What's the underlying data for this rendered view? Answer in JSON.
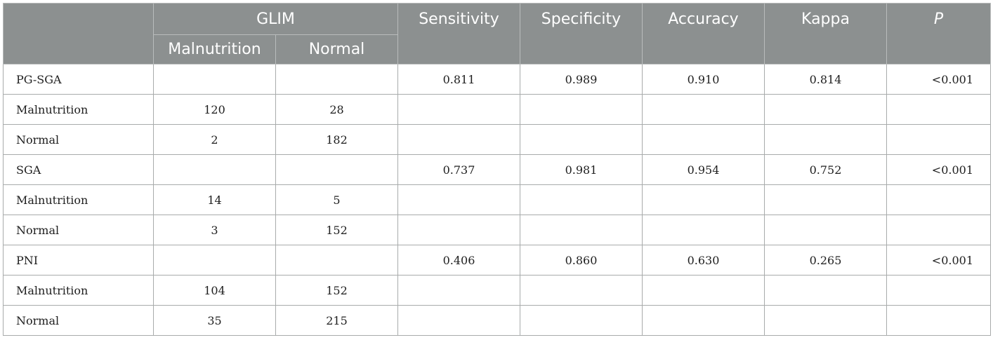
{
  "header": {
    "glim": "GLIM",
    "malnutrition": "Malnutrition",
    "normal": "Normal",
    "sensitivity": "Sensitivity",
    "specificity": "Specificity",
    "accuracy": "Accuracy",
    "kappa": "Kappa",
    "p": "P"
  },
  "rows": [
    {
      "label": "PG-SGA",
      "malnutrition": "",
      "normal": "",
      "sensitivity": "0.811",
      "specificity": "0.989",
      "accuracy": "0.910",
      "kappa": "0.814",
      "p": "<0.001"
    },
    {
      "label": "Malnutrition",
      "malnutrition": "120",
      "normal": "28",
      "sensitivity": "",
      "specificity": "",
      "accuracy": "",
      "kappa": "",
      "p": ""
    },
    {
      "label": "Normal",
      "malnutrition": "2",
      "normal": "182",
      "sensitivity": "",
      "specificity": "",
      "accuracy": "",
      "kappa": "",
      "p": ""
    },
    {
      "label": "SGA",
      "malnutrition": "",
      "normal": "",
      "sensitivity": "0.737",
      "specificity": "0.981",
      "accuracy": "0.954",
      "kappa": "0.752",
      "p": "<0.001"
    },
    {
      "label": "Malnutrition",
      "malnutrition": "14",
      "normal": "5",
      "sensitivity": "",
      "specificity": "",
      "accuracy": "",
      "kappa": "",
      "p": ""
    },
    {
      "label": "Normal",
      "malnutrition": "3",
      "normal": "152",
      "sensitivity": "",
      "specificity": "",
      "accuracy": "",
      "kappa": "",
      "p": ""
    },
    {
      "label": "PNI",
      "malnutrition": "",
      "normal": "",
      "sensitivity": "0.406",
      "specificity": "0.860",
      "accuracy": "0.630",
      "kappa": "0.265",
      "p": "<0.001"
    },
    {
      "label": "Malnutrition",
      "malnutrition": "104",
      "normal": "152",
      "sensitivity": "",
      "specificity": "",
      "accuracy": "",
      "kappa": "",
      "p": ""
    },
    {
      "label": "Normal",
      "malnutrition": "35",
      "normal": "215",
      "sensitivity": "",
      "specificity": "",
      "accuracy": "",
      "kappa": "",
      "p": ""
    }
  ]
}
